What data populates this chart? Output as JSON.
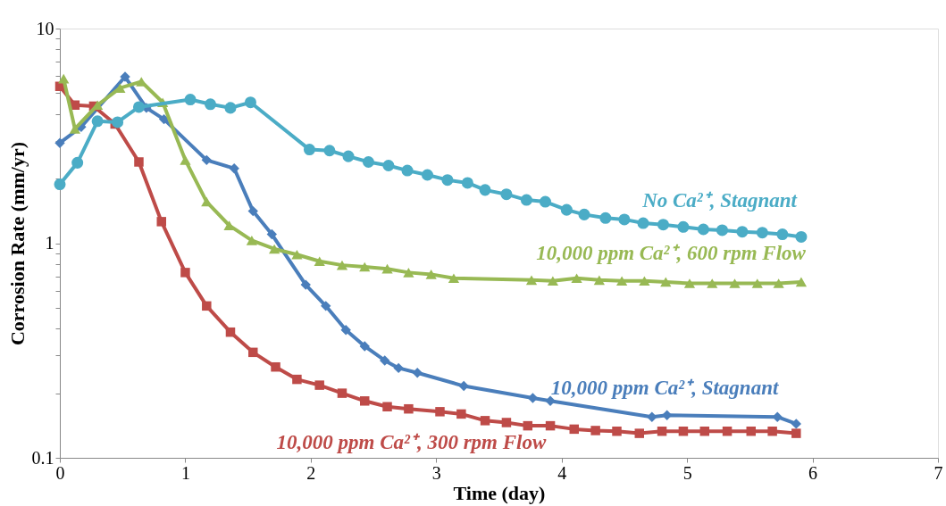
{
  "chart_data": {
    "type": "line",
    "xlabel": "Time (day)",
    "ylabel": "Corrosion Rate (mm/yr)",
    "log": "y",
    "xlim": [
      0,
      7
    ],
    "xticks": [
      0,
      1,
      2,
      3,
      4,
      5,
      6,
      7
    ],
    "ylim": [
      0.1,
      10
    ],
    "yticks": [
      0.1,
      {
        "value": 0.2,
        "label": null
      },
      {
        "value": 0.3,
        "label": null
      },
      {
        "value": 0.4,
        "label": null
      },
      {
        "value": 0.5,
        "label": null
      },
      {
        "value": 0.6,
        "label": null
      },
      {
        "value": 0.7,
        "label": null
      },
      {
        "value": 0.8,
        "label": null
      },
      {
        "value": 0.9,
        "label": null
      },
      1,
      {
        "value": 2,
        "label": null
      },
      {
        "value": 3,
        "label": null
      },
      {
        "value": 4,
        "label": null
      },
      {
        "value": 5,
        "label": null
      },
      {
        "value": 6,
        "label": null
      },
      {
        "value": 7,
        "label": null
      },
      {
        "value": 8,
        "label": null
      },
      {
        "value": 9,
        "label": null
      },
      10
    ],
    "grid": false,
    "legend": false,
    "line_style": "solid",
    "series": [
      {
        "name": "10,000 ppm Ca²⁺, Stagnant",
        "color": "#4a7ebb",
        "marker": "diamond",
        "x": [
          0,
          0.17,
          0.52,
          0.69,
          0.83,
          1.17,
          1.39,
          1.54,
          1.69,
          1.96,
          2.12,
          2.28,
          2.43,
          2.59,
          2.7,
          2.85,
          3.22,
          3.77,
          3.91,
          4.72,
          4.84,
          5.72,
          5.87
        ],
        "values": [
          2.93,
          3.48,
          5.96,
          4.27,
          3.78,
          2.44,
          2.23,
          1.41,
          1.1,
          0.64,
          0.51,
          0.394,
          0.331,
          0.284,
          0.262,
          0.249,
          0.216,
          0.19,
          0.184,
          0.155,
          0.158,
          0.155,
          0.144
        ]
      },
      {
        "name": "10,000 ppm Ca²⁺, 300 rpm Flow",
        "color": "#be4b48",
        "marker": "square",
        "x": [
          0,
          0.12,
          0.27,
          0.44,
          0.63,
          0.81,
          1.0,
          1.17,
          1.36,
          1.54,
          1.72,
          1.89,
          2.07,
          2.25,
          2.43,
          2.61,
          2.78,
          3.03,
          3.2,
          3.39,
          3.56,
          3.73,
          3.91,
          4.1,
          4.27,
          4.44,
          4.62,
          4.8,
          4.97,
          5.14,
          5.32,
          5.51,
          5.68,
          5.87
        ],
        "values": [
          5.38,
          4.4,
          4.35,
          3.59,
          2.39,
          1.26,
          0.73,
          0.51,
          0.385,
          0.31,
          0.265,
          0.232,
          0.218,
          0.2,
          0.184,
          0.173,
          0.169,
          0.164,
          0.16,
          0.149,
          0.146,
          0.141,
          0.141,
          0.136,
          0.134,
          0.133,
          0.13,
          0.133,
          0.133,
          0.133,
          0.133,
          0.133,
          0.133,
          0.13
        ]
      },
      {
        "name": "10,000 ppm Ca²⁺, 600 rpm Flow",
        "color": "#98b954",
        "marker": "triangle",
        "x": [
          0.03,
          0.12,
          0.3,
          0.48,
          0.65,
          0.82,
          1.0,
          1.17,
          1.35,
          1.53,
          1.71,
          1.89,
          2.07,
          2.25,
          2.43,
          2.61,
          2.78,
          2.96,
          3.14,
          3.76,
          3.93,
          4.12,
          4.3,
          4.48,
          4.66,
          4.83,
          5.02,
          5.2,
          5.38,
          5.56,
          5.73,
          5.91
        ],
        "values": [
          5.84,
          3.41,
          4.4,
          5.28,
          5.66,
          4.53,
          2.44,
          1.56,
          1.21,
          1.03,
          0.94,
          0.885,
          0.824,
          0.79,
          0.776,
          0.76,
          0.73,
          0.716,
          0.687,
          0.673,
          0.667,
          0.687,
          0.673,
          0.667,
          0.667,
          0.66,
          0.65,
          0.65,
          0.65,
          0.65,
          0.65,
          0.66
        ]
      },
      {
        "name": "No Ca²⁺, Stagnant",
        "color": "#4bacc6",
        "marker": "circle",
        "x": [
          0,
          0.14,
          0.3,
          0.46,
          0.63,
          1.04,
          1.2,
          1.36,
          1.52,
          1.99,
          2.15,
          2.3,
          2.46,
          2.62,
          2.77,
          2.93,
          3.09,
          3.25,
          3.39,
          3.56,
          3.72,
          3.87,
          4.04,
          4.18,
          4.35,
          4.5,
          4.65,
          4.81,
          4.97,
          5.13,
          5.28,
          5.44,
          5.6,
          5.76,
          5.91
        ],
        "values": [
          1.88,
          2.37,
          3.7,
          3.66,
          4.31,
          4.67,
          4.44,
          4.27,
          4.53,
          2.73,
          2.7,
          2.54,
          2.39,
          2.3,
          2.18,
          2.08,
          1.97,
          1.91,
          1.77,
          1.69,
          1.59,
          1.56,
          1.43,
          1.36,
          1.31,
          1.29,
          1.24,
          1.22,
          1.19,
          1.16,
          1.15,
          1.13,
          1.12,
          1.1,
          1.07
        ]
      }
    ]
  }
}
